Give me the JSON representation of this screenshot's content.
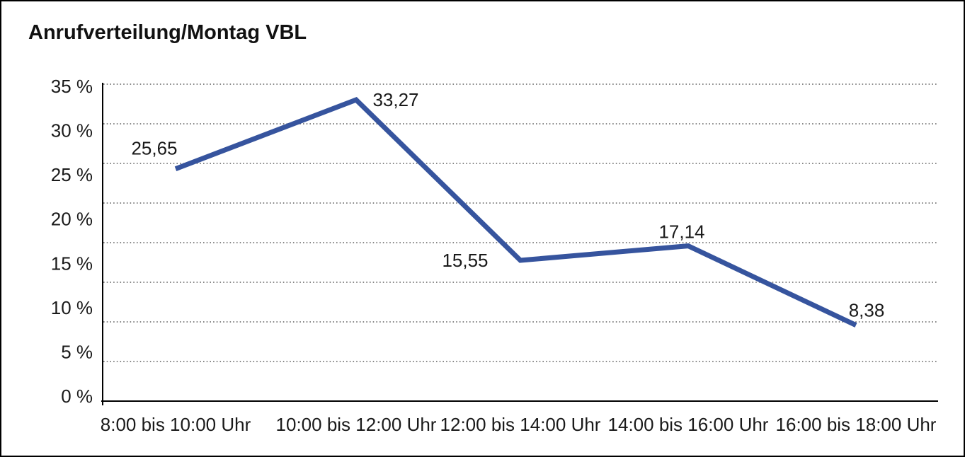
{
  "window": {
    "background": "#ffffff",
    "border_color": "#000000"
  },
  "chart_data": {
    "type": "line",
    "title": "Anrufverteilung/Montag VBL",
    "categories": [
      "8:00 bis 10:00 Uhr",
      "10:00 bis 12:00 Uhr",
      "12:00 bis 14:00 Uhr",
      "14:00 bis 16:00 Uhr",
      "16:00 bis 18:00 Uhr"
    ],
    "values": [
      25.65,
      33.27,
      15.55,
      17.14,
      8.38
    ],
    "point_labels": [
      "25,65",
      "33,27",
      "15,55",
      "17,14",
      "8,38"
    ],
    "xlabel": "",
    "ylabel": "",
    "y_ticks": [
      "35 %",
      "30 %",
      "25 %",
      "20 %",
      "15 %",
      "10 %",
      "5 %",
      "0 %"
    ],
    "ylim": [
      0,
      35
    ],
    "grid": "horizontal-dotted",
    "legend_position": "none",
    "line_color": "#36549e",
    "grid_color": "#3f3f3f",
    "axis_color": "#000000",
    "text_color": "#1a1a1a"
  }
}
